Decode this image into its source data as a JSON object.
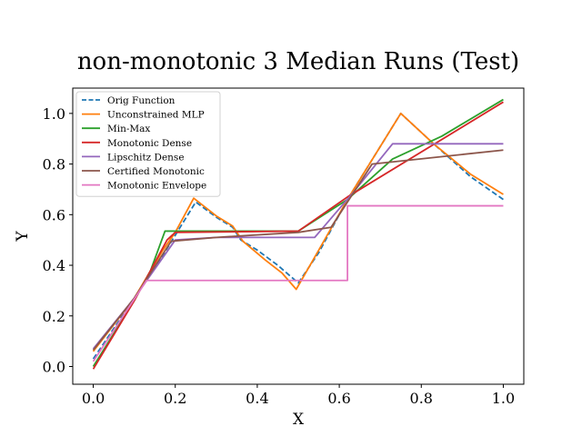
{
  "chart_data": {
    "type": "line",
    "title": "non-monotonic 3 Median Runs (Test)",
    "xlabel": "X",
    "ylabel": "Y",
    "xlim": [
      -0.05,
      1.05
    ],
    "ylim": [
      -0.07,
      1.1
    ],
    "xticks": [
      0.0,
      0.2,
      0.4,
      0.6,
      0.8,
      1.0
    ],
    "xtick_labels": [
      "0.0",
      "0.2",
      "0.4",
      "0.6",
      "0.8",
      "1.0"
    ],
    "yticks": [
      0.0,
      0.2,
      0.4,
      0.6,
      0.8,
      1.0
    ],
    "ytick_labels": [
      "0.0",
      "0.2",
      "0.4",
      "0.6",
      "0.8",
      "1.0"
    ],
    "grid": false,
    "legend_position": "top-left",
    "series": [
      {
        "name": "Orig Function",
        "color": "#1f77b4",
        "dashed": true,
        "points": [
          [
            0.0,
            0.03
          ],
          [
            0.1,
            0.27
          ],
          [
            0.17,
            0.44
          ],
          [
            0.25,
            0.65
          ],
          [
            0.3,
            0.59
          ],
          [
            0.34,
            0.55
          ],
          [
            0.36,
            0.5
          ],
          [
            0.4,
            0.46
          ],
          [
            0.45,
            0.4
          ],
          [
            0.5,
            0.33
          ],
          [
            0.55,
            0.45
          ],
          [
            0.62,
            0.66
          ],
          [
            0.75,
            1.0
          ],
          [
            0.83,
            0.88
          ],
          [
            0.92,
            0.75
          ],
          [
            1.0,
            0.66
          ]
        ]
      },
      {
        "name": "Unconstrained MLP",
        "color": "#ff7f0e",
        "dashed": false,
        "points": [
          [
            0.0,
            0.06
          ],
          [
            0.1,
            0.27
          ],
          [
            0.17,
            0.46
          ],
          [
            0.2,
            0.53
          ],
          [
            0.245,
            0.665
          ],
          [
            0.3,
            0.595
          ],
          [
            0.34,
            0.555
          ],
          [
            0.365,
            0.495
          ],
          [
            0.42,
            0.42
          ],
          [
            0.46,
            0.37
          ],
          [
            0.495,
            0.305
          ],
          [
            0.55,
            0.46
          ],
          [
            0.62,
            0.66
          ],
          [
            0.75,
            1.0
          ],
          [
            0.83,
            0.88
          ],
          [
            0.92,
            0.76
          ],
          [
            1.0,
            0.68
          ]
        ]
      },
      {
        "name": "Min-Max",
        "color": "#2ca02c",
        "dashed": false,
        "points": [
          [
            0.0,
            0.0
          ],
          [
            0.1,
            0.26
          ],
          [
            0.14,
            0.38
          ],
          [
            0.175,
            0.535
          ],
          [
            0.5,
            0.535
          ],
          [
            0.62,
            0.66
          ],
          [
            0.73,
            0.82
          ],
          [
            0.85,
            0.91
          ],
          [
            1.0,
            1.055
          ]
        ]
      },
      {
        "name": "Monotonic Dense",
        "color": "#d62728",
        "dashed": false,
        "points": [
          [
            0.0,
            -0.01
          ],
          [
            0.1,
            0.26
          ],
          [
            0.18,
            0.5
          ],
          [
            0.2,
            0.53
          ],
          [
            0.5,
            0.535
          ],
          [
            0.62,
            0.67
          ],
          [
            1.0,
            1.045
          ]
        ]
      },
      {
        "name": "Lipschitz Dense",
        "color": "#9467bd",
        "dashed": false,
        "points": [
          [
            0.0,
            0.07
          ],
          [
            0.1,
            0.27
          ],
          [
            0.2,
            0.5
          ],
          [
            0.3,
            0.51
          ],
          [
            0.54,
            0.51
          ],
          [
            0.63,
            0.68
          ],
          [
            0.73,
            0.88
          ],
          [
            1.0,
            0.88
          ]
        ]
      },
      {
        "name": "Certified Monotonic",
        "color": "#8c564b",
        "dashed": false,
        "points": [
          [
            0.0,
            0.065
          ],
          [
            0.1,
            0.27
          ],
          [
            0.19,
            0.495
          ],
          [
            0.3,
            0.51
          ],
          [
            0.5,
            0.53
          ],
          [
            0.58,
            0.55
          ],
          [
            0.68,
            0.8
          ],
          [
            1.0,
            0.855
          ]
        ]
      },
      {
        "name": "Monotonic Envelope",
        "color": "#e377c2",
        "dashed": false,
        "points": [
          [
            0.0,
            0.02
          ],
          [
            0.13,
            0.34
          ],
          [
            0.62,
            0.34
          ],
          [
            0.62,
            0.635
          ],
          [
            1.0,
            0.635
          ]
        ]
      }
    ]
  }
}
